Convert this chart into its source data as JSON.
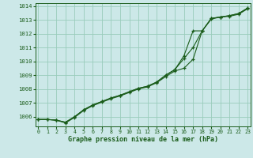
{
  "title": "Graphe pression niveau de la mer (hPa)",
  "background_color": "#cce8e8",
  "grid_color": "#99ccbb",
  "line_color": "#1a5c1a",
  "ylim": [
    1005.3,
    1014.2
  ],
  "xlim": [
    -0.3,
    23.3
  ],
  "yticks": [
    1006,
    1007,
    1008,
    1009,
    1010,
    1011,
    1012,
    1013,
    1014
  ],
  "xticks": [
    0,
    1,
    2,
    3,
    4,
    5,
    6,
    7,
    8,
    9,
    10,
    11,
    12,
    13,
    14,
    15,
    16,
    17,
    18,
    19,
    20,
    21,
    22,
    23
  ],
  "line1": [
    1005.8,
    1005.8,
    1005.75,
    1005.6,
    1006.0,
    1006.5,
    1006.85,
    1007.1,
    1007.35,
    1007.55,
    1007.8,
    1008.05,
    1008.2,
    1008.5,
    1009.0,
    1009.4,
    1010.4,
    1012.2,
    1012.2,
    1013.1,
    1013.2,
    1013.3,
    1013.45,
    1013.85
  ],
  "line2": [
    1005.8,
    1005.8,
    1005.75,
    1005.6,
    1006.0,
    1006.5,
    1006.85,
    1007.1,
    1007.35,
    1007.55,
    1007.8,
    1008.05,
    1008.2,
    1008.5,
    1009.0,
    1009.4,
    1010.2,
    1011.0,
    1012.2,
    1013.1,
    1013.2,
    1013.3,
    1013.45,
    1013.85
  ],
  "line3": [
    1005.8,
    1005.8,
    1005.75,
    1005.55,
    1005.95,
    1006.45,
    1006.8,
    1007.05,
    1007.3,
    1007.5,
    1007.75,
    1008.0,
    1008.15,
    1008.45,
    1008.9,
    1009.3,
    1009.5,
    1010.15,
    1012.2,
    1013.05,
    1013.2,
    1013.25,
    1013.4,
    1013.8
  ]
}
